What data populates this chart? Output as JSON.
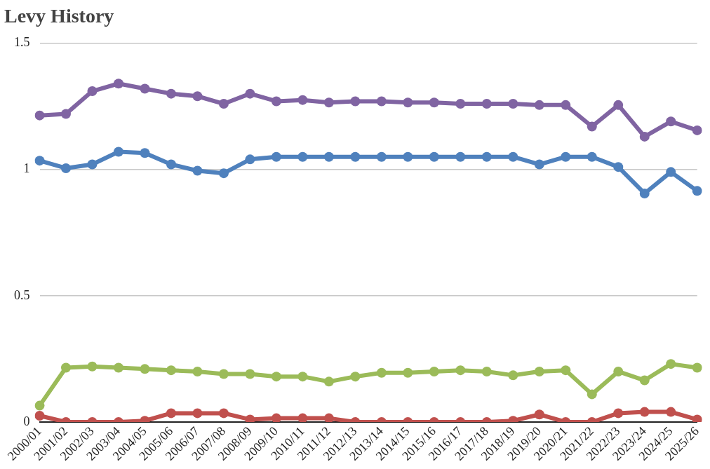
{
  "chart_data": {
    "type": "line",
    "title": "Levy History",
    "categories": [
      "2000/01",
      "2001/02",
      "2002/03",
      "2003/04",
      "2004/05",
      "2005/06",
      "2006/07",
      "2007/08",
      "2008/09",
      "2009/10",
      "2010/11",
      "2011/12",
      "2012/13",
      "2013/14",
      "2014/15",
      "2015/16",
      "2016/17",
      "2017/18",
      "2018/19",
      "2019/20",
      "2020/21",
      "2021/22",
      "2022/23",
      "2023/24",
      "2024/25",
      "2025/26"
    ],
    "series": [
      {
        "color": "#8064a2",
        "values": [
          1.214,
          1.22,
          1.31,
          1.34,
          1.32,
          1.3,
          1.29,
          1.26,
          1.3,
          1.27,
          1.275,
          1.265,
          1.27,
          1.27,
          1.265,
          1.265,
          1.26,
          1.26,
          1.26,
          1.255,
          1.255,
          1.17,
          1.255,
          1.13,
          1.19,
          1.155
        ]
      },
      {
        "color": "#4f81bd",
        "values": [
          1.035,
          1.005,
          1.02,
          1.07,
          1.065,
          1.02,
          0.995,
          0.985,
          1.04,
          1.05,
          1.05,
          1.05,
          1.05,
          1.05,
          1.05,
          1.05,
          1.05,
          1.05,
          1.05,
          1.02,
          1.05,
          1.05,
          1.01,
          0.905,
          0.99,
          0.915
        ]
      },
      {
        "color": "#9bbb59",
        "values": [
          0.065,
          0.215,
          0.22,
          0.215,
          0.21,
          0.205,
          0.2,
          0.19,
          0.19,
          0.18,
          0.18,
          0.16,
          0.18,
          0.195,
          0.195,
          0.2,
          0.205,
          0.2,
          0.185,
          0.2,
          0.205,
          0.11,
          0.2,
          0.165,
          0.23,
          0.215
        ]
      },
      {
        "color": "#c0504d",
        "values": [
          0.025,
          0,
          0,
          0,
          0.005,
          0.035,
          0.035,
          0.035,
          0.01,
          0.015,
          0.015,
          0.015,
          0,
          0,
          0,
          0,
          0,
          0,
          0.005,
          0.03,
          0,
          0,
          0.035,
          0.04,
          0.04,
          0.01
        ]
      }
    ],
    "ylim": [
      0,
      1.5
    ],
    "yticks": [
      0,
      0.5,
      1,
      1.5
    ],
    "grid": "y",
    "legend": false,
    "marker": "circle",
    "line_style": "solid"
  }
}
